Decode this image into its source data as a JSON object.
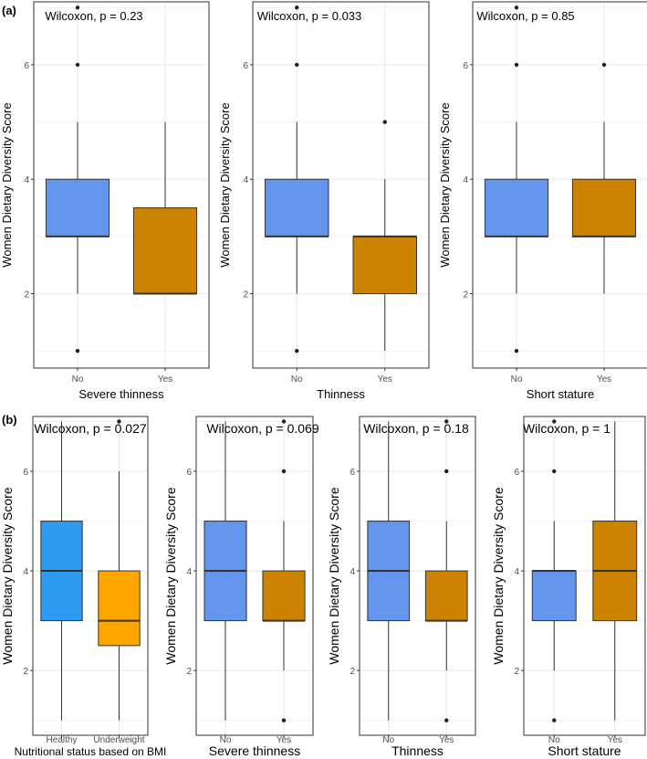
{
  "panels": [
    {
      "label": "(a)"
    },
    {
      "label": "(b)"
    }
  ],
  "colors": {
    "no": "#6495ED",
    "yes": "#CC8400",
    "healthy": "#2E9AF2",
    "underweight": "#FFA500",
    "grid": "#ebebeb",
    "border": "#333333"
  },
  "chart_data": [
    {
      "type": "box",
      "panel": "(a)",
      "title": "Wilcoxon, p = 0.23",
      "xlabel": "Severe thinness",
      "ylabel": "Women Dietary Diversity Score",
      "categories": [
        "No",
        "Yes"
      ],
      "ylim": [
        0.7,
        7.1
      ],
      "yticks": [
        2,
        4,
        6
      ],
      "boxes": [
        {
          "q1": 3,
          "median": 3,
          "q3": 4,
          "whisker_low": 2,
          "whisker_high": 5,
          "outliers": [
            1,
            6,
            7
          ],
          "color": "no"
        },
        {
          "q1": 2,
          "median": 2,
          "q3": 3.5,
          "whisker_low": 2,
          "whisker_high": 5,
          "outliers": [],
          "color": "yes"
        }
      ]
    },
    {
      "type": "box",
      "panel": "(a)",
      "title": "Wilcoxon, p = 0.033",
      "xlabel": "Thinness",
      "ylabel": "Women Dietary Diversity Score",
      "categories": [
        "No",
        "Yes"
      ],
      "ylim": [
        0.7,
        7.1
      ],
      "yticks": [
        2,
        4,
        6
      ],
      "boxes": [
        {
          "q1": 3,
          "median": 3,
          "q3": 4,
          "whisker_low": 2,
          "whisker_high": 5,
          "outliers": [
            1,
            6,
            7
          ],
          "color": "no"
        },
        {
          "q1": 2,
          "median": 3,
          "q3": 3,
          "whisker_low": 1,
          "whisker_high": 4,
          "outliers": [
            5
          ],
          "color": "yes"
        }
      ]
    },
    {
      "type": "box",
      "panel": "(a)",
      "title": "Wilcoxon, p = 0.85",
      "xlabel": "Short stature",
      "ylabel": "Women Dietary Diversity Score",
      "categories": [
        "No",
        "Yes"
      ],
      "ylim": [
        0.7,
        7.1
      ],
      "yticks": [
        2,
        4,
        6
      ],
      "boxes": [
        {
          "q1": 3,
          "median": 3,
          "q3": 4,
          "whisker_low": 2,
          "whisker_high": 5,
          "outliers": [
            1,
            6,
            7
          ],
          "color": "no"
        },
        {
          "q1": 3,
          "median": 3,
          "q3": 4,
          "whisker_low": 2,
          "whisker_high": 5,
          "outliers": [
            6
          ],
          "color": "yes"
        }
      ]
    },
    {
      "type": "box",
      "panel": "(b)",
      "title": "Wilcoxon, p = 0.027",
      "xlabel": "Nutritional status based on BMI",
      "ylabel": "Women Dietary Diversity Score",
      "categories": [
        "Healthy",
        "Underweight"
      ],
      "ylim": [
        0.7,
        7.1
      ],
      "yticks": [
        2,
        4,
        6
      ],
      "boxes": [
        {
          "q1": 3,
          "median": 4,
          "q3": 5,
          "whisker_low": 1,
          "whisker_high": 7,
          "outliers": [],
          "color": "healthy"
        },
        {
          "q1": 2.5,
          "median": 3,
          "q3": 4,
          "whisker_low": 1,
          "whisker_high": 6,
          "outliers": [
            7
          ],
          "color": "underweight"
        }
      ]
    },
    {
      "type": "box",
      "panel": "(b)",
      "title": "Wilcoxon, p = 0.069",
      "xlabel": "Severe thinness",
      "ylabel": "Women Dietary Diversity Score",
      "categories": [
        "No",
        "Yes"
      ],
      "ylim": [
        0.7,
        7.1
      ],
      "yticks": [
        2,
        4,
        6
      ],
      "boxes": [
        {
          "q1": 3,
          "median": 4,
          "q3": 5,
          "whisker_low": 1,
          "whisker_high": 7,
          "outliers": [],
          "color": "no"
        },
        {
          "q1": 3,
          "median": 3,
          "q3": 4,
          "whisker_low": 2,
          "whisker_high": 5,
          "outliers": [
            1,
            6,
            7
          ],
          "color": "yes"
        }
      ]
    },
    {
      "type": "box",
      "panel": "(b)",
      "title": "Wilcoxon, p = 0.18",
      "xlabel": "Thinness",
      "ylabel": "Women Dietary Diversity Score",
      "categories": [
        "No",
        "Yes"
      ],
      "ylim": [
        0.7,
        7.1
      ],
      "yticks": [
        2,
        4,
        6
      ],
      "boxes": [
        {
          "q1": 3,
          "median": 4,
          "q3": 5,
          "whisker_low": 1,
          "whisker_high": 7,
          "outliers": [],
          "color": "no"
        },
        {
          "q1": 3,
          "median": 3,
          "q3": 4,
          "whisker_low": 2,
          "whisker_high": 5,
          "outliers": [
            1,
            6,
            7
          ],
          "color": "yes"
        }
      ]
    },
    {
      "type": "box",
      "panel": "(b)",
      "title": "Wilcoxon, p = 1",
      "xlabel": "Short stature",
      "ylabel": "Women Dietary Diversity Score",
      "categories": [
        "No",
        "Yes"
      ],
      "ylim": [
        0.7,
        7.1
      ],
      "yticks": [
        2,
        4,
        6
      ],
      "boxes": [
        {
          "q1": 3,
          "median": 4,
          "q3": 4,
          "whisker_low": 2,
          "whisker_high": 5,
          "outliers": [
            1,
            6,
            7
          ],
          "color": "no"
        },
        {
          "q1": 3,
          "median": 4,
          "q3": 5,
          "whisker_low": 1,
          "whisker_high": 7,
          "outliers": [],
          "color": "yes"
        }
      ]
    }
  ]
}
